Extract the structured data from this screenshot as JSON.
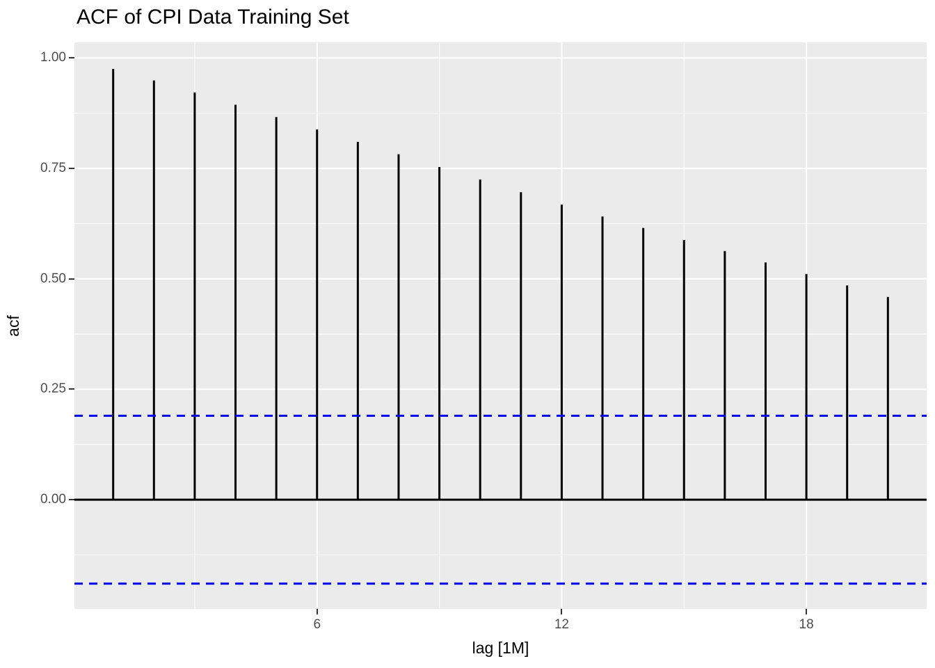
{
  "title": "ACF of CPI Data Training Set",
  "chart_data": {
    "type": "bar",
    "subtype": "acf-lollipop-segments",
    "title": "ACF of CPI Data Training Set",
    "xlabel": "lag [1M]",
    "ylabel": "acf",
    "x": [
      1,
      2,
      3,
      4,
      5,
      6,
      7,
      8,
      9,
      10,
      11,
      12,
      13,
      14,
      15,
      16,
      17,
      18,
      19,
      20
    ],
    "values": [
      0.975,
      0.949,
      0.922,
      0.894,
      0.866,
      0.838,
      0.81,
      0.782,
      0.753,
      0.725,
      0.696,
      0.668,
      0.641,
      0.615,
      0.588,
      0.563,
      0.537,
      0.511,
      0.485,
      0.459
    ],
    "confidence_upper": 0.19,
    "confidence_lower": -0.19,
    "zero_line": 0,
    "xlim": [
      0.05,
      20.95
    ],
    "ylim": [
      -0.247,
      1.035
    ],
    "x_ticks": [
      {
        "v": 6,
        "label": "6"
      },
      {
        "v": 12,
        "label": "12"
      },
      {
        "v": 18,
        "label": "18"
      }
    ],
    "y_ticks": [
      {
        "v": 0,
        "label": "0.00"
      },
      {
        "v": 0.25,
        "label": "0.25"
      },
      {
        "v": 0.5,
        "label": "0.50"
      },
      {
        "v": 0.75,
        "label": "0.75"
      },
      {
        "v": 1,
        "label": "1.00"
      }
    ],
    "grid": {
      "minor_x": [
        3,
        9,
        15,
        21
      ],
      "minor_y": [
        -0.125,
        0.125,
        0.375,
        0.625,
        0.875
      ],
      "major_on": true,
      "minor_on": true
    },
    "legend": "none",
    "colors": {
      "panel_bg": "#EBEBEB",
      "grid": "#FFFFFF",
      "bar": "#000000",
      "zero_line": "#000000",
      "confidence_line": "#0000EE",
      "tick_text": "#4D4D4D",
      "tick_mark": "#333333",
      "title_text": "#000000"
    }
  }
}
